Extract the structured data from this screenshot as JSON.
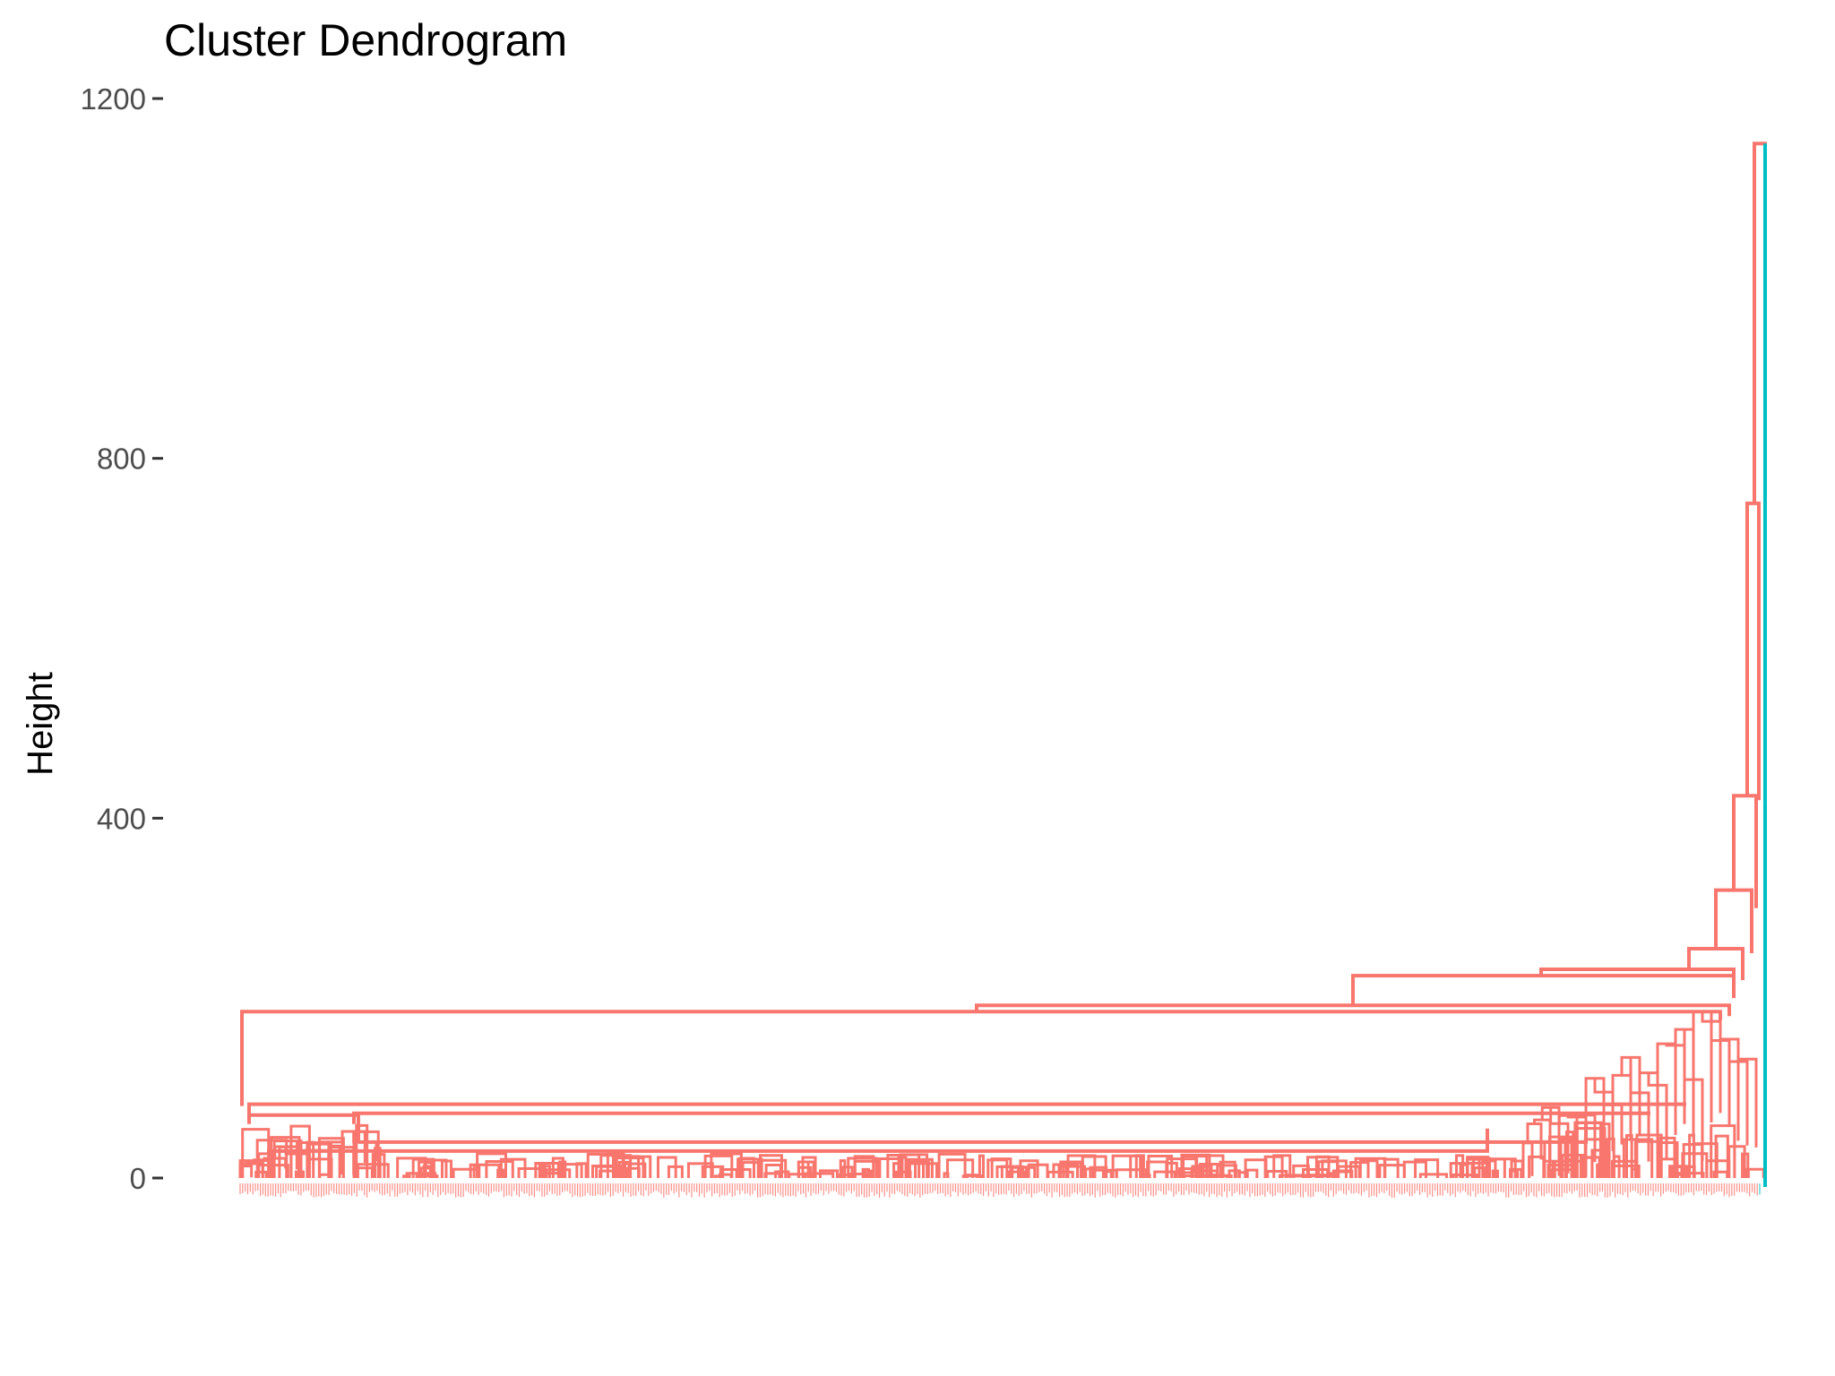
{
  "chart_data": {
    "type": "dendrogram",
    "title": "Cluster Dendrogram",
    "xlabel": "",
    "ylabel": "Height",
    "ylim": [
      0,
      1200
    ],
    "yticks": [
      0,
      400,
      800,
      1200
    ],
    "grid": false,
    "legend": "none",
    "cluster_colors": {
      "main": "#F8766D",
      "minor": "#00BFC4"
    },
    "leaf_count": 600,
    "major_merges": [
      {
        "height": 1150,
        "cluster": "main"
      },
      {
        "height": 750,
        "cluster": "main"
      },
      {
        "height": 425,
        "cluster": "main"
      },
      {
        "height": 320,
        "cluster": "main"
      },
      {
        "height": 255,
        "cluster": "main"
      },
      {
        "height": 230,
        "cluster": "main"
      },
      {
        "height": 200,
        "cluster": "main"
      },
      {
        "height": 192,
        "cluster": "main"
      },
      {
        "height": 185,
        "cluster": "main"
      },
      {
        "height": 80,
        "cluster": "main"
      },
      {
        "height": 75,
        "cluster": "main"
      },
      {
        "height": 40,
        "cluster": "main"
      },
      {
        "height": 30,
        "cluster": "main"
      }
    ]
  }
}
